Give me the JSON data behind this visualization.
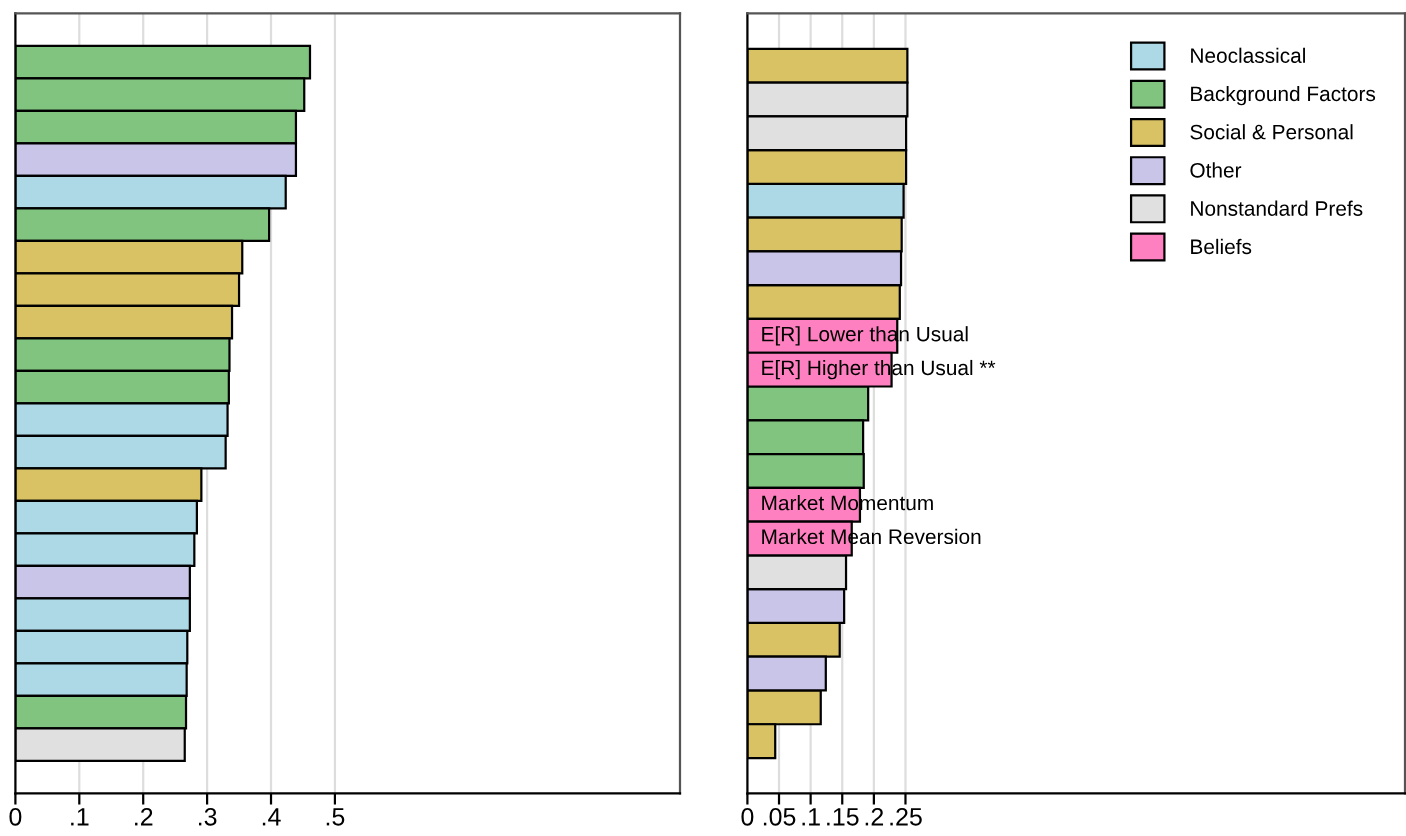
{
  "chart_data": [
    {
      "type": "bar",
      "orientation": "horizontal",
      "categories": [
        null,
        null,
        null,
        null,
        null,
        null,
        null,
        null,
        null,
        null,
        null,
        null,
        null,
        null,
        null,
        null,
        null,
        null,
        null,
        null,
        null,
        null
      ],
      "values": [
        0.461,
        0.452,
        0.439,
        0.439,
        0.423,
        0.397,
        0.355,
        0.35,
        0.339,
        0.335,
        0.334,
        0.332,
        0.329,
        0.291,
        0.284,
        0.28,
        0.273,
        0.273,
        0.269,
        0.268,
        0.267,
        0.265
      ],
      "colors": [
        "#80c480",
        "#80c480",
        "#80c480",
        "#c9c5e9",
        "#add8e6",
        "#80c480",
        "#d9c263",
        "#d9c263",
        "#d9c263",
        "#80c480",
        "#80c480",
        "#add8e6",
        "#add8e6",
        "#d9c263",
        "#add8e6",
        "#add8e6",
        "#c9c5e9",
        "#add8e6",
        "#add8e6",
        "#add8e6",
        "#80c480",
        "#e0e0e0"
      ],
      "xlim": [
        0,
        1.04
      ],
      "xticks": [
        0,
        {
          "value": 0.1,
          "label": ".1"
        },
        {
          "value": 0.2,
          "label": ".2"
        },
        {
          "value": 0.3,
          "label": ".3"
        },
        {
          "value": 0.4,
          "label": ".4"
        },
        {
          "value": 0.5,
          "label": ".5"
        }
      ],
      "grid": "x",
      "tick_labels": "x"
    },
    {
      "type": "bar",
      "orientation": "horizontal",
      "categories": [
        null,
        null,
        null,
        null,
        null,
        null,
        null,
        null,
        "E[R] Lower than Usual",
        "E[R] Higher than Usual **",
        null,
        null,
        null,
        "Market Momentum",
        "Market Mean Reversion",
        null,
        null,
        null,
        null,
        null,
        null
      ],
      "series": [
        {
          "name": "Neoclassical",
          "color": "#add8e6",
          "values": [
            null,
            null,
            null,
            null,
            0.247,
            null,
            null,
            null,
            null,
            null,
            null,
            null,
            null,
            null,
            null,
            null,
            null,
            null,
            null,
            null,
            null
          ]
        },
        {
          "name": "Background Factors",
          "color": "#80c480",
          "values": [
            null,
            null,
            null,
            null,
            null,
            null,
            null,
            null,
            null,
            null,
            0.191,
            0.183,
            0.184,
            null,
            null,
            null,
            null,
            null,
            null,
            null,
            null
          ]
        },
        {
          "name": "Social & Personal",
          "color": "#d9c263",
          "values": [
            0.253,
            null,
            null,
            0.251,
            null,
            0.244,
            null,
            0.241,
            null,
            null,
            null,
            null,
            null,
            null,
            null,
            null,
            null,
            0.146,
            null,
            0.116,
            0.044
          ]
        },
        {
          "name": "Other",
          "color": "#c9c5e9",
          "values": [
            null,
            null,
            null,
            null,
            null,
            null,
            0.243,
            null,
            null,
            null,
            null,
            null,
            null,
            null,
            null,
            null,
            0.153,
            null,
            0.124,
            null,
            null
          ]
        },
        {
          "name": "Nonstandard Prefs",
          "color": "#e0e0e0",
          "values": [
            null,
            0.253,
            0.251,
            null,
            null,
            null,
            null,
            null,
            null,
            null,
            null,
            null,
            null,
            null,
            null,
            0.156,
            null,
            null,
            null,
            null,
            null
          ]
        },
        {
          "name": "Beliefs",
          "color": "#ff80c0",
          "values": [
            null,
            null,
            null,
            null,
            null,
            null,
            null,
            null,
            0.237,
            0.228,
            null,
            null,
            null,
            0.178,
            0.165,
            null,
            null,
            null,
            null,
            null,
            null
          ]
        }
      ],
      "xlim": [
        0,
        1.04
      ],
      "xticks": [
        0,
        {
          "value": 0.05,
          "label": ".05"
        },
        {
          "value": 0.1,
          "label": ".1"
        },
        {
          "value": 0.15,
          "label": ".15"
        },
        {
          "value": 0.2,
          "label": ".2"
        },
        {
          "value": 0.25,
          "label": ".25"
        }
      ],
      "grid": "x",
      "legend": "top right",
      "tick_labels": "x"
    }
  ]
}
